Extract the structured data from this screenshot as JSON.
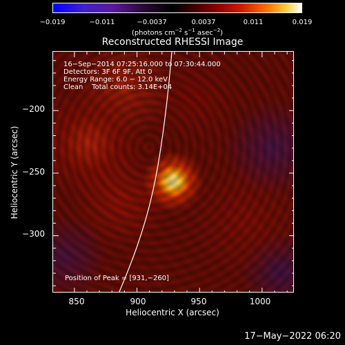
{
  "colorbar": {
    "ticks": [
      "−0.019",
      "−0.011",
      "−0.0037",
      "0.0037",
      "0.011",
      "0.019"
    ],
    "unit_prefix": "(photons cm",
    "unit_exp1": "−2",
    "unit_mid1": " s",
    "unit_exp2": "−1",
    "unit_mid2": " asec",
    "unit_exp3": "−2",
    "unit_suffix": ")"
  },
  "title": "Reconstructed RHESSI Image",
  "info": {
    "line1": "16−Sep−2014 07:25:16.000 to 07:30:44.000",
    "line2": "Detectors: 3F 6F 9F, Att 0",
    "line3": "Energy Range: 6.0 − 12.0 keV",
    "line4": "Clean    Total counts: 3.14E+04"
  },
  "peak_label": "Position of Peak = [931,−260]",
  "axes": {
    "xlabel": "Heliocentric X (arcsec)",
    "ylabel": "Heliocentric Y (arcsec)",
    "xticks": [
      "850",
      "900",
      "950",
      "1000"
    ],
    "yticks": [
      "−200",
      "−250",
      "−300"
    ],
    "xlim": [
      833,
      1026
    ],
    "ylim": [
      -346,
      -153
    ]
  },
  "peak": {
    "x": 931,
    "y": -260
  },
  "footer": "17−May−2022 06:20"
}
